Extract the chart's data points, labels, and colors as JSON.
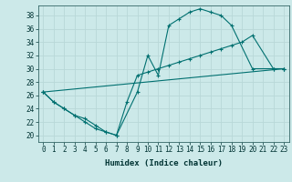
{
  "xlabel": "Humidex (Indice chaleur)",
  "bg_color": "#cce9e9",
  "grid_color": "#b8d8d8",
  "line_color": "#007070",
  "xlim": [
    -0.5,
    23.5
  ],
  "ylim": [
    19.0,
    39.5
  ],
  "xticks": [
    0,
    1,
    2,
    3,
    4,
    5,
    6,
    7,
    8,
    9,
    10,
    11,
    12,
    13,
    14,
    15,
    16,
    17,
    18,
    19,
    20,
    21,
    22,
    23
  ],
  "yticks": [
    20,
    22,
    24,
    26,
    28,
    30,
    32,
    34,
    36,
    38
  ],
  "series": [
    {
      "x": [
        0,
        1,
        2,
        3,
        4,
        5,
        6,
        7,
        9,
        10,
        11,
        12,
        13,
        14,
        15,
        16,
        17,
        18,
        20,
        22,
        23
      ],
      "y": [
        26.5,
        25,
        24,
        23,
        22.5,
        21.5,
        20.5,
        20,
        26.5,
        32,
        29,
        36.5,
        37.5,
        38.5,
        39,
        38.5,
        38,
        36.5,
        30,
        30,
        30
      ]
    },
    {
      "x": [
        0,
        1,
        2,
        3,
        4,
        5,
        6,
        7,
        8,
        9,
        10,
        11,
        12,
        13,
        14,
        15,
        16,
        17,
        18,
        19,
        20,
        22,
        23
      ],
      "y": [
        26.5,
        25,
        24,
        23,
        22,
        21,
        20.5,
        20,
        25,
        29,
        29.5,
        30,
        30.5,
        31,
        31.5,
        32,
        32.5,
        33,
        33.5,
        34,
        35,
        30,
        30
      ]
    },
    {
      "x": [
        0,
        23
      ],
      "y": [
        26.5,
        30
      ]
    }
  ]
}
